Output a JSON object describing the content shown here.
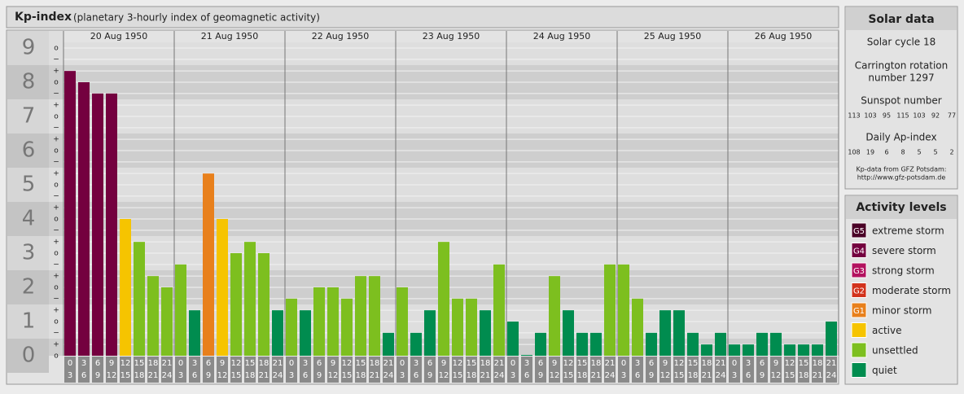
{
  "chart_data": {
    "type": "bar",
    "title": "Kp-index",
    "subtitle": "(planetary 3-hourly index of geomagnetic activity)",
    "ylim": [
      0,
      9
    ],
    "yticks": [
      0,
      1,
      2,
      3,
      4,
      5,
      6,
      7,
      8,
      9
    ],
    "minor_ticks": [
      {
        "value": 0,
        "label": "o"
      },
      {
        "value": 0.33,
        "label": "+"
      },
      {
        "value": 0.67,
        "label": "−"
      },
      {
        "value": 1,
        "label": "o"
      },
      {
        "value": 1.33,
        "label": "+"
      },
      {
        "value": 1.67,
        "label": "−"
      },
      {
        "value": 2,
        "label": "o"
      },
      {
        "value": 2.33,
        "label": "+"
      },
      {
        "value": 2.67,
        "label": "−"
      },
      {
        "value": 3,
        "label": "o"
      },
      {
        "value": 3.33,
        "label": "+"
      },
      {
        "value": 3.67,
        "label": "−"
      },
      {
        "value": 4,
        "label": "o"
      },
      {
        "value": 4.33,
        "label": "+"
      },
      {
        "value": 4.67,
        "label": "−"
      },
      {
        "value": 5,
        "label": "o"
      },
      {
        "value": 5.33,
        "label": "+"
      },
      {
        "value": 5.67,
        "label": "−"
      },
      {
        "value": 6,
        "label": "o"
      },
      {
        "value": 6.33,
        "label": "+"
      },
      {
        "value": 6.67,
        "label": "−"
      },
      {
        "value": 7,
        "label": "o"
      },
      {
        "value": 7.33,
        "label": "+"
      },
      {
        "value": 7.67,
        "label": "−"
      },
      {
        "value": 8,
        "label": "o"
      },
      {
        "value": 8.33,
        "label": "+"
      },
      {
        "value": 8.67,
        "label": "−"
      },
      {
        "value": 9,
        "label": "o"
      }
    ],
    "hours": [
      [
        "0",
        "3"
      ],
      [
        "3",
        "6"
      ],
      [
        "6",
        "9"
      ],
      [
        "9",
        "12"
      ],
      [
        "12",
        "15"
      ],
      [
        "15",
        "18"
      ],
      [
        "18",
        "21"
      ],
      [
        "21",
        "24"
      ]
    ],
    "days": [
      {
        "date": "20 Aug 1950",
        "values": [
          8.33,
          8,
          7.67,
          7.67,
          4,
          3.33,
          2.33,
          2
        ],
        "colors": [
          "#74003f",
          "#74003f",
          "#74003f",
          "#74003f",
          "#f6c400",
          "#7dbf1f",
          "#7dbf1f",
          "#7dbf1f"
        ]
      },
      {
        "date": "21 Aug 1950",
        "values": [
          2.67,
          1.33,
          5.33,
          4,
          3,
          3.33,
          3,
          1.33
        ],
        "colors": [
          "#7dbf1f",
          "#008c4f",
          "#e8801c",
          "#f6c400",
          "#7dbf1f",
          "#7dbf1f",
          "#7dbf1f",
          "#008c4f"
        ]
      },
      {
        "date": "22 Aug 1950",
        "values": [
          1.67,
          1.33,
          2,
          2,
          1.67,
          2.33,
          2.33,
          0.67
        ],
        "colors": [
          "#7dbf1f",
          "#008c4f",
          "#7dbf1f",
          "#7dbf1f",
          "#7dbf1f",
          "#7dbf1f",
          "#7dbf1f",
          "#008c4f"
        ]
      },
      {
        "date": "23 Aug 1950",
        "values": [
          2,
          0.67,
          1.33,
          3.33,
          1.67,
          1.67,
          1.33,
          2.67
        ],
        "colors": [
          "#7dbf1f",
          "#008c4f",
          "#008c4f",
          "#7dbf1f",
          "#7dbf1f",
          "#7dbf1f",
          "#008c4f",
          "#7dbf1f"
        ]
      },
      {
        "date": "24 Aug 1950",
        "values": [
          1,
          0,
          0.67,
          2.33,
          1.33,
          0.67,
          0.67,
          2.67
        ],
        "colors": [
          "#008c4f",
          "#008c4f",
          "#008c4f",
          "#7dbf1f",
          "#008c4f",
          "#008c4f",
          "#008c4f",
          "#7dbf1f"
        ]
      },
      {
        "date": "25 Aug 1950",
        "values": [
          2.67,
          1.67,
          0.67,
          1.33,
          1.33,
          0.67,
          0.33,
          0.67
        ],
        "colors": [
          "#7dbf1f",
          "#7dbf1f",
          "#008c4f",
          "#008c4f",
          "#008c4f",
          "#008c4f",
          "#008c4f",
          "#008c4f"
        ]
      },
      {
        "date": "26 Aug 1950",
        "values": [
          0.33,
          0.33,
          0.67,
          0.67,
          0.33,
          0.33,
          0.33,
          1
        ],
        "colors": [
          "#008c4f",
          "#008c4f",
          "#008c4f",
          "#008c4f",
          "#008c4f",
          "#008c4f",
          "#008c4f",
          "#008c4f"
        ]
      }
    ]
  },
  "solar_data": {
    "title": "Solar data",
    "cycle": "Solar cycle 18",
    "rotation": [
      "Carrington rotation",
      "number 1297"
    ],
    "sunspot_title": "Sunspot number",
    "sunspot": [
      113,
      103,
      95,
      115,
      103,
      92,
      77
    ],
    "ap_title": "Daily Ap-index",
    "ap": [
      108,
      19,
      6,
      8,
      5,
      5,
      2
    ],
    "source": [
      "Kp-data from GFZ Potsdam:",
      "http://www.gfz-potsdam.de"
    ]
  },
  "activity_levels": {
    "title": "Activity levels",
    "items": [
      {
        "badge": "G5",
        "label": "extreme storm",
        "color": "#4a0026"
      },
      {
        "badge": "G4",
        "label": "severe storm",
        "color": "#74003f"
      },
      {
        "badge": "G3",
        "label": "strong storm",
        "color": "#b3125f"
      },
      {
        "badge": "G2",
        "label": "moderate storm",
        "color": "#d2321c"
      },
      {
        "badge": "G1",
        "label": "minor storm",
        "color": "#e8801c"
      },
      {
        "label": "active",
        "color": "#f6c400"
      },
      {
        "label": "unsettled",
        "color": "#7dbf1f"
      },
      {
        "label": "quiet",
        "color": "#008c4f"
      }
    ]
  }
}
